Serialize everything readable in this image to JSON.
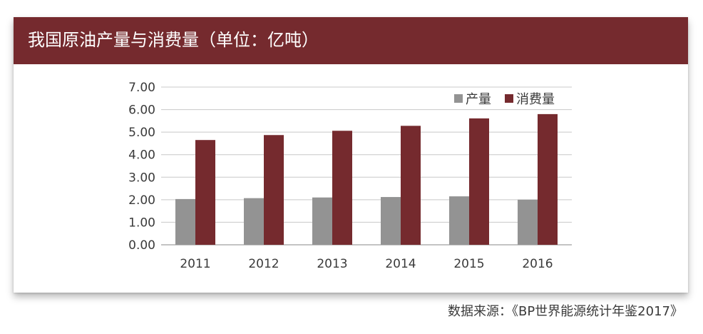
{
  "title": "我国原油产量与消费量（单位：亿吨）",
  "source": "数据来源：《BP世界能源统计年鉴2017》",
  "chart_data": {
    "type": "bar",
    "title": "我国原油产量与消费量（单位：亿吨）",
    "categories": [
      "2011",
      "2012",
      "2013",
      "2014",
      "2015",
      "2016"
    ],
    "series": [
      {
        "name": "产量",
        "color": "#939393",
        "values": [
          2.03,
          2.07,
          2.1,
          2.12,
          2.15,
          2.0
        ]
      },
      {
        "name": "消费量",
        "color": "#752a2e",
        "values": [
          4.65,
          4.87,
          5.06,
          5.28,
          5.61,
          5.8
        ]
      }
    ],
    "ylim": [
      0,
      7
    ],
    "yticks": [
      "0.00",
      "1.00",
      "2.00",
      "3.00",
      "4.00",
      "5.00",
      "6.00",
      "7.00"
    ],
    "xlabel": "",
    "ylabel": "",
    "grid": true,
    "legend_position": "top-right"
  }
}
